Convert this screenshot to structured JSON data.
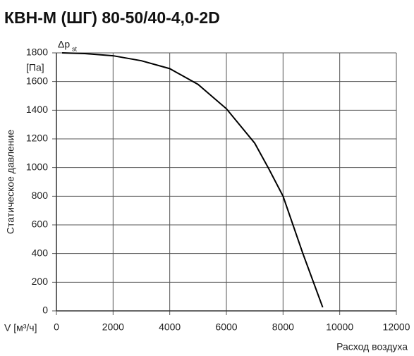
{
  "chart_data": {
    "type": "line",
    "title": "КВН-М (ШГ) 80-50/40-4,0-2D",
    "y_label": "Статическое давление",
    "y_symbol": "Δp",
    "y_symbol_sub": "st",
    "y_unit": "[Па]",
    "x_unit": "V [м³/ч]",
    "x_label": "Расход воздуха",
    "x": [
      200,
      1000,
      2000,
      3000,
      4000,
      5000,
      6000,
      7000,
      7500,
      8000,
      8700,
      9400
    ],
    "series": [
      {
        "name": "КВН-М (ШГ) 80-50/40-4,0-2D",
        "color": "#000000",
        "values": [
          1800,
          1795,
          1780,
          1745,
          1690,
          1580,
          1410,
          1170,
          990,
          800,
          400,
          25
        ]
      }
    ],
    "xlim": [
      0,
      12000
    ],
    "xticks": [
      0,
      2000,
      4000,
      6000,
      8000,
      10000,
      12000
    ],
    "ylim": [
      0,
      1800
    ],
    "yticks": [
      0,
      200,
      400,
      600,
      800,
      1000,
      1200,
      1400,
      1600,
      1800
    ],
    "grid": true
  }
}
